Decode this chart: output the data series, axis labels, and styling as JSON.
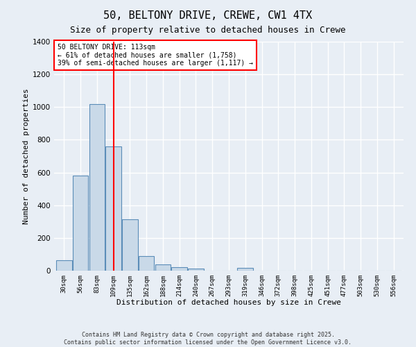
{
  "title": "50, BELTONY DRIVE, CREWE, CW1 4TX",
  "subtitle": "Size of property relative to detached houses in Crewe",
  "xlabel": "Distribution of detached houses by size in Crewe",
  "ylabel": "Number of detached properties",
  "categories": [
    "30sqm",
    "56sqm",
    "83sqm",
    "109sqm",
    "135sqm",
    "162sqm",
    "188sqm",
    "214sqm",
    "240sqm",
    "267sqm",
    "293sqm",
    "319sqm",
    "346sqm",
    "372sqm",
    "398sqm",
    "425sqm",
    "451sqm",
    "477sqm",
    "503sqm",
    "530sqm",
    "556sqm"
  ],
  "values": [
    65,
    580,
    1020,
    760,
    315,
    90,
    38,
    22,
    12,
    0,
    0,
    15,
    0,
    0,
    0,
    0,
    0,
    0,
    0,
    0,
    0
  ],
  "bar_color": "#c9d9e8",
  "bar_edge_color": "#5b8db8",
  "vline_x": 3,
  "vline_color": "red",
  "annotation_text": "50 BELTONY DRIVE: 113sqm\n← 61% of detached houses are smaller (1,758)\n39% of semi-detached houses are larger (1,117) →",
  "annotation_box_color": "white",
  "annotation_box_edge": "red",
  "ylim": [
    0,
    1400
  ],
  "yticks": [
    0,
    200,
    400,
    600,
    800,
    1000,
    1200,
    1400
  ],
  "bg_color": "#e8eef5",
  "plot_bg_color": "#e8eef5",
  "grid_color": "white",
  "footer_line1": "Contains HM Land Registry data © Crown copyright and database right 2025.",
  "footer_line2": "Contains public sector information licensed under the Open Government Licence v3.0."
}
